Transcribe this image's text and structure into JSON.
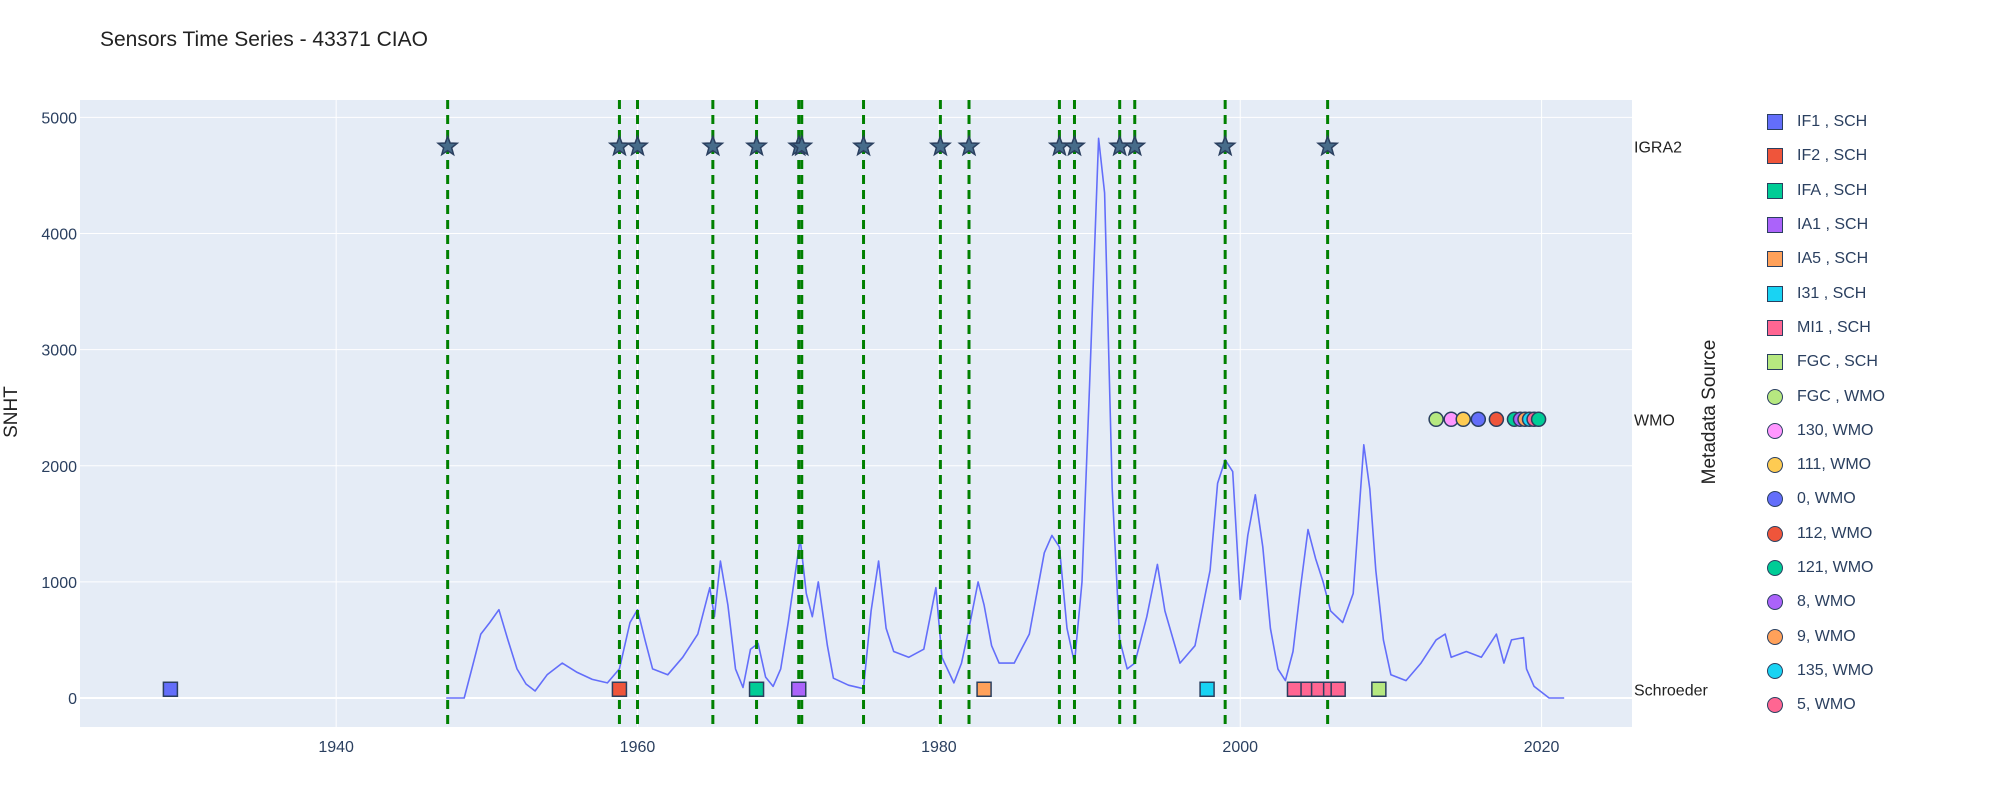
{
  "chart_data": {
    "type": "line",
    "title": "Sensors Time Series - 43371 CIAO",
    "xlabel": "",
    "ylabel": "SNHT",
    "xlim": [
      1923,
      2026
    ],
    "ylim": [
      -250,
      5150
    ],
    "x_ticks": [
      1940,
      1960,
      1980,
      2000,
      2020
    ],
    "y_ticks": [
      0,
      1000,
      2000,
      3000,
      4000,
      5000
    ],
    "grid": true,
    "plot_background": "#e5ecf6",
    "line_color": "#636efa",
    "vline_color": "#008000",
    "legend_title": "Metadata Source",
    "legend_placement": "right",
    "series_snht": [
      [
        1947.3,
        0
      ],
      [
        1948.5,
        0
      ],
      [
        1949.0,
        250
      ],
      [
        1949.6,
        550
      ],
      [
        1950.2,
        650
      ],
      [
        1950.8,
        760
      ],
      [
        1951.4,
        500
      ],
      [
        1952.0,
        250
      ],
      [
        1952.6,
        120
      ],
      [
        1953.2,
        60
      ],
      [
        1954.0,
        200
      ],
      [
        1955.0,
        300
      ],
      [
        1956.0,
        220
      ],
      [
        1957.0,
        160
      ],
      [
        1958.0,
        130
      ],
      [
        1958.8,
        250
      ],
      [
        1959.5,
        650
      ],
      [
        1960.0,
        760
      ],
      [
        1960.5,
        500
      ],
      [
        1961.0,
        250
      ],
      [
        1962.0,
        200
      ],
      [
        1963.0,
        350
      ],
      [
        1964.0,
        550
      ],
      [
        1964.8,
        950
      ],
      [
        1965.1,
        700
      ],
      [
        1965.5,
        1180
      ],
      [
        1966.0,
        800
      ],
      [
        1966.5,
        250
      ],
      [
        1967.0,
        90
      ],
      [
        1967.5,
        420
      ],
      [
        1968.0,
        470
      ],
      [
        1968.5,
        180
      ],
      [
        1969.0,
        100
      ],
      [
        1969.5,
        250
      ],
      [
        1970.0,
        650
      ],
      [
        1970.5,
        1100
      ],
      [
        1970.8,
        1370
      ],
      [
        1971.2,
        900
      ],
      [
        1971.6,
        700
      ],
      [
        1972.0,
        1000
      ],
      [
        1972.6,
        450
      ],
      [
        1973.0,
        170
      ],
      [
        1974.0,
        110
      ],
      [
        1975.0,
        80
      ],
      [
        1975.5,
        750
      ],
      [
        1976.0,
        1180
      ],
      [
        1976.5,
        600
      ],
      [
        1977.0,
        400
      ],
      [
        1978.0,
        350
      ],
      [
        1979.0,
        420
      ],
      [
        1979.8,
        950
      ],
      [
        1980.2,
        350
      ],
      [
        1981.0,
        130
      ],
      [
        1981.5,
        300
      ],
      [
        1982.0,
        600
      ],
      [
        1982.6,
        1000
      ],
      [
        1983.0,
        800
      ],
      [
        1983.5,
        450
      ],
      [
        1984.0,
        300
      ],
      [
        1985.0,
        300
      ],
      [
        1986.0,
        550
      ],
      [
        1987.0,
        1250
      ],
      [
        1987.5,
        1400
      ],
      [
        1988.0,
        1300
      ],
      [
        1988.5,
        600
      ],
      [
        1989.0,
        300
      ],
      [
        1989.5,
        1000
      ],
      [
        1990.0,
        2700
      ],
      [
        1990.6,
        4820
      ],
      [
        1991.0,
        4350
      ],
      [
        1991.5,
        1800
      ],
      [
        1992.0,
        500
      ],
      [
        1992.5,
        250
      ],
      [
        1993.0,
        300
      ],
      [
        1993.8,
        700
      ],
      [
        1994.5,
        1150
      ],
      [
        1995.0,
        750
      ],
      [
        1996.0,
        300
      ],
      [
        1997.0,
        450
      ],
      [
        1998.0,
        1100
      ],
      [
        1998.5,
        1850
      ],
      [
        1999.0,
        2050
      ],
      [
        1999.5,
        1950
      ],
      [
        2000.0,
        850
      ],
      [
        2000.5,
        1400
      ],
      [
        2001.0,
        1750
      ],
      [
        2001.5,
        1300
      ],
      [
        2002.0,
        600
      ],
      [
        2002.5,
        250
      ],
      [
        2003.0,
        150
      ],
      [
        2003.5,
        400
      ],
      [
        2004.0,
        950
      ],
      [
        2004.5,
        1450
      ],
      [
        2005.0,
        1200
      ],
      [
        2005.5,
        1000
      ],
      [
        2006.0,
        750
      ],
      [
        2006.8,
        650
      ],
      [
        2007.5,
        900
      ],
      [
        2008.2,
        2180
      ],
      [
        2008.6,
        1800
      ],
      [
        2009.0,
        1100
      ],
      [
        2009.5,
        500
      ],
      [
        2010.0,
        200
      ],
      [
        2011.0,
        150
      ],
      [
        2012.0,
        300
      ],
      [
        2013.0,
        500
      ],
      [
        2013.6,
        550
      ],
      [
        2014.0,
        350
      ],
      [
        2015.0,
        400
      ],
      [
        2016.0,
        350
      ],
      [
        2017.0,
        550
      ],
      [
        2017.5,
        300
      ],
      [
        2018.0,
        500
      ],
      [
        2018.8,
        520
      ],
      [
        2019.0,
        250
      ],
      [
        2019.5,
        100
      ],
      [
        2020.5,
        0
      ],
      [
        2021.5,
        0
      ]
    ],
    "vlines": [
      1947.4,
      1958.8,
      1960.0,
      1965.0,
      1967.9,
      1970.7,
      1970.9,
      1975.0,
      1980.1,
      1982.0,
      1988.0,
      1989.0,
      1993.0,
      1992.0,
      1999.0,
      2005.8
    ],
    "category_rows": [
      {
        "label": "IGRA2",
        "y": 4750
      },
      {
        "label": "WMO",
        "y": 2400
      },
      {
        "label": "Schroeder",
        "y": 75
      }
    ],
    "legend": [
      {
        "label": "IF1 , SCH",
        "color": "#636efa",
        "symbol": "square"
      },
      {
        "label": "IF2 , SCH",
        "color": "#ef553b",
        "symbol": "square"
      },
      {
        "label": "IFA , SCH",
        "color": "#00cc96",
        "symbol": "square"
      },
      {
        "label": "IA1 , SCH",
        "color": "#ab63fa",
        "symbol": "square"
      },
      {
        "label": "IA5 , SCH",
        "color": "#ffa15a",
        "symbol": "square"
      },
      {
        "label": "I31 , SCH",
        "color": "#19d3f3",
        "symbol": "square"
      },
      {
        "label": "MI1 , SCH",
        "color": "#ff6692",
        "symbol": "square"
      },
      {
        "label": "FGC , SCH",
        "color": "#b6e880",
        "symbol": "square"
      },
      {
        "label": "FGC , WMO",
        "color": "#b6e880",
        "symbol": "circle"
      },
      {
        "label": "130, WMO",
        "color": "#ff97ff",
        "symbol": "circle"
      },
      {
        "label": "111, WMO",
        "color": "#fecb52",
        "symbol": "circle"
      },
      {
        "label": "0, WMO",
        "color": "#636efa",
        "symbol": "circle"
      },
      {
        "label": "112, WMO",
        "color": "#ef553b",
        "symbol": "circle"
      },
      {
        "label": "121, WMO",
        "color": "#00cc96",
        "symbol": "circle"
      },
      {
        "label": "8, WMO",
        "color": "#ab63fa",
        "symbol": "circle"
      },
      {
        "label": "9, WMO",
        "color": "#ffa15a",
        "symbol": "circle"
      },
      {
        "label": "135, WMO",
        "color": "#19d3f3",
        "symbol": "circle"
      },
      {
        "label": "5, WMO",
        "color": "#ff6692",
        "symbol": "circle"
      }
    ],
    "points_igra2": [
      {
        "x": 1947.4,
        "color": "#476c8a"
      },
      {
        "x": 1958.8,
        "color": "#476c8a"
      },
      {
        "x": 1960.0,
        "color": "#476c8a"
      },
      {
        "x": 1965.0,
        "color": "#476c8a"
      },
      {
        "x": 1967.9,
        "color": "#476c8a"
      },
      {
        "x": 1970.7,
        "color": "#476c8a"
      },
      {
        "x": 1970.9,
        "color": "#476c8a"
      },
      {
        "x": 1975.0,
        "color": "#476c8a"
      },
      {
        "x": 1980.1,
        "color": "#476c8a"
      },
      {
        "x": 1982.0,
        "color": "#476c8a"
      },
      {
        "x": 1988.0,
        "color": "#476c8a"
      },
      {
        "x": 1989.0,
        "color": "#476c8a"
      },
      {
        "x": 1992.0,
        "color": "#476c8a"
      },
      {
        "x": 1993.0,
        "color": "#476c8a"
      },
      {
        "x": 1999.0,
        "color": "#476c8a"
      },
      {
        "x": 2005.8,
        "color": "#476c8a"
      }
    ],
    "points_wmo": [
      {
        "x": 2013.0,
        "color": "#b6e880"
      },
      {
        "x": 2014.0,
        "color": "#ff97ff"
      },
      {
        "x": 2014.8,
        "color": "#fecb52"
      },
      {
        "x": 2015.8,
        "color": "#636efa"
      },
      {
        "x": 2017.0,
        "color": "#ef553b"
      },
      {
        "x": 2018.2,
        "color": "#00cc96"
      },
      {
        "x": 2018.6,
        "color": "#ab63fa"
      },
      {
        "x": 2018.9,
        "color": "#ffa15a"
      },
      {
        "x": 2019.2,
        "color": "#19d3f3"
      },
      {
        "x": 2019.5,
        "color": "#ff6692"
      },
      {
        "x": 2019.8,
        "color": "#00cc96"
      }
    ],
    "points_schroeder": [
      {
        "x": 1929.0,
        "color": "#636efa"
      },
      {
        "x": 1958.8,
        "color": "#ef553b"
      },
      {
        "x": 1967.9,
        "color": "#00cc96"
      },
      {
        "x": 1970.7,
        "color": "#ab63fa"
      },
      {
        "x": 1983.0,
        "color": "#ffa15a"
      },
      {
        "x": 1997.8,
        "color": "#19d3f3"
      },
      {
        "x": 2003.6,
        "color": "#ff6692"
      },
      {
        "x": 2004.5,
        "color": "#ff6692"
      },
      {
        "x": 2005.2,
        "color": "#ff6692"
      },
      {
        "x": 2006.0,
        "color": "#ff6692"
      },
      {
        "x": 2006.5,
        "color": "#ff6692"
      },
      {
        "x": 2009.2,
        "color": "#b6e880"
      }
    ]
  }
}
